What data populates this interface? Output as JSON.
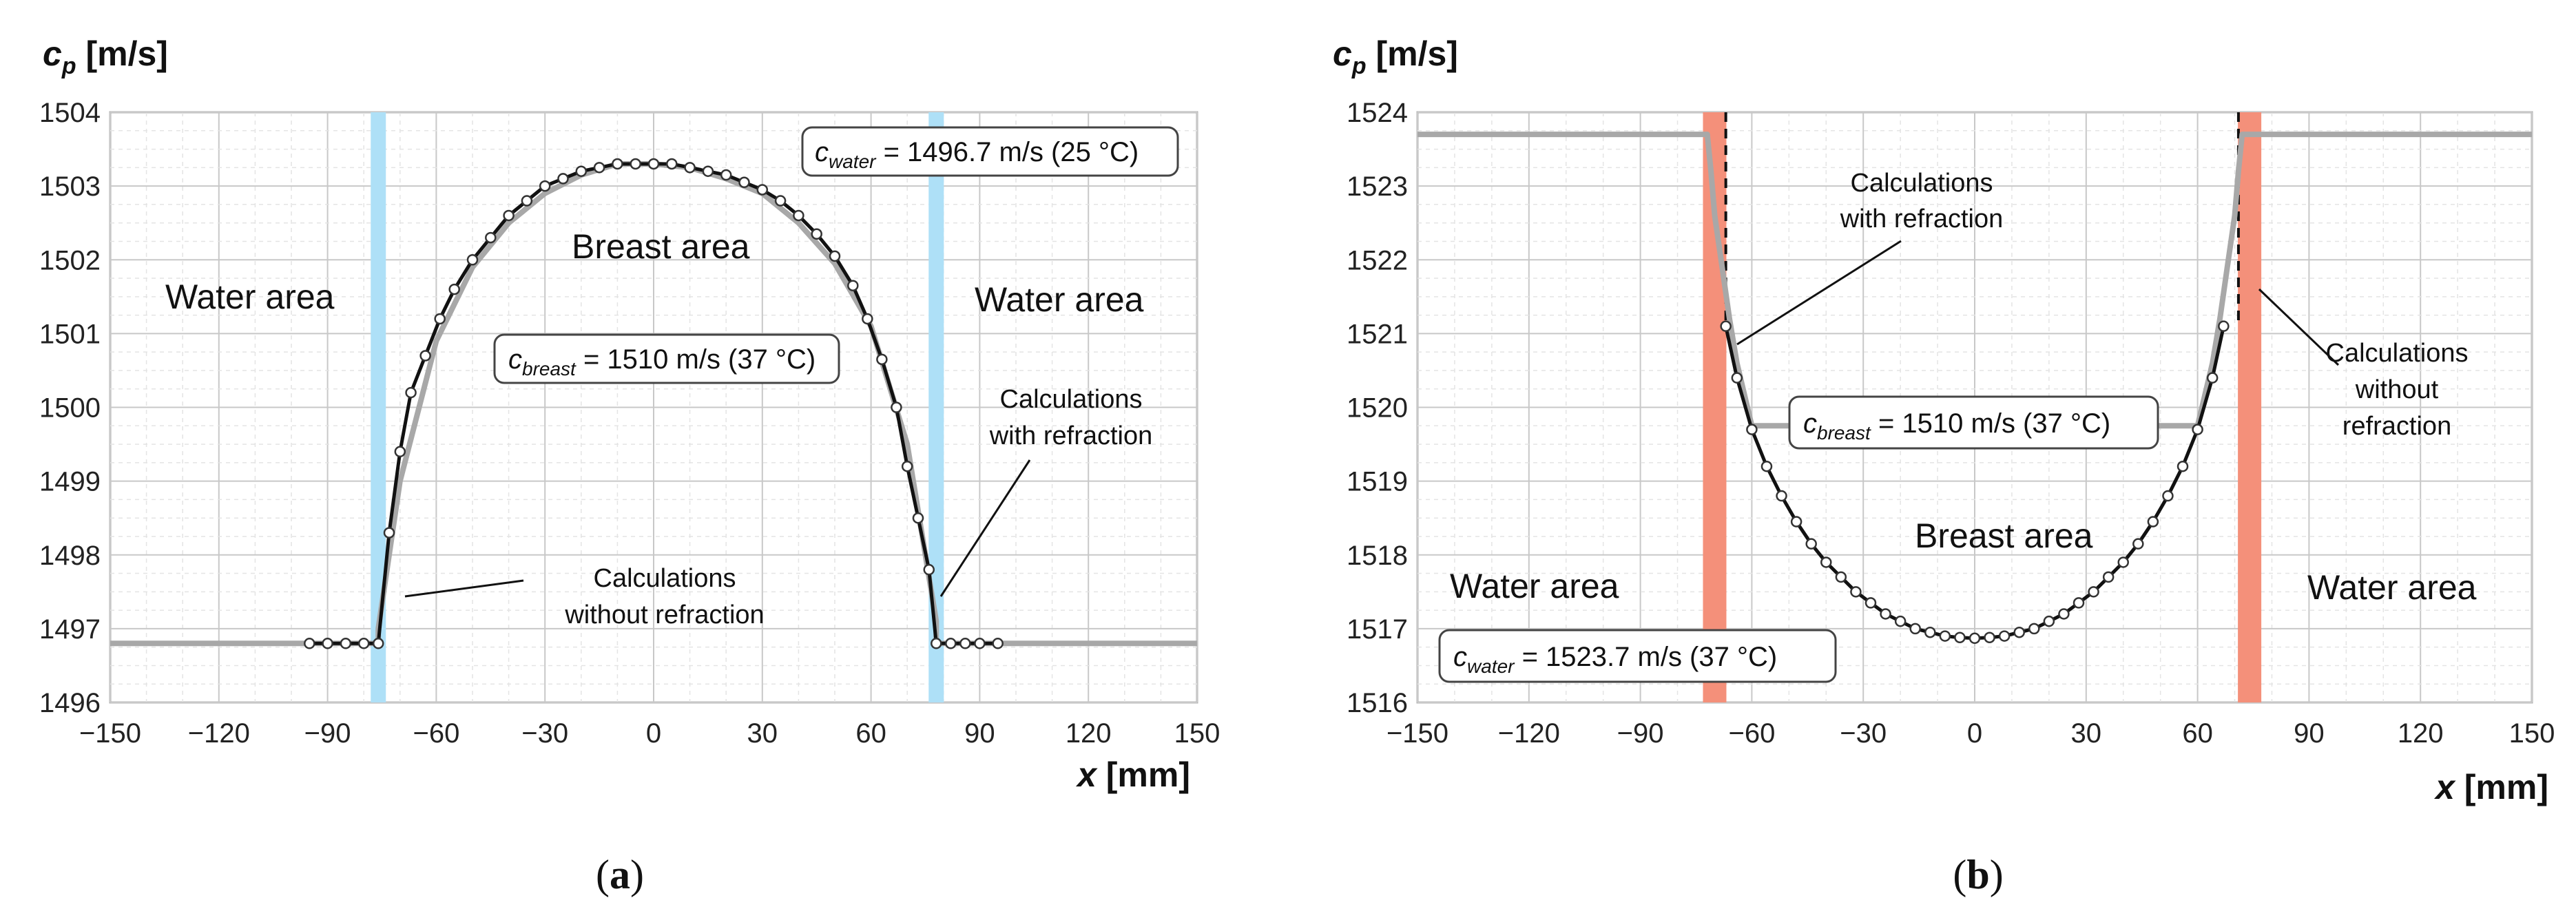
{
  "panels": [
    {
      "id": "a",
      "label_open": "(",
      "label_letter": "a",
      "label_close": ")",
      "ylabel_sym": "c",
      "ylabel_sub": "p",
      "ylabel_unit": " [m/s]",
      "xlabel_sym": "x",
      "xlabel_unit": " [mm]",
      "annotations": {
        "water_left": "Water area",
        "water_right": "Water area",
        "breast": "Breast area",
        "c_water_sym": "c",
        "c_water_sub": "water",
        "c_water_val": " = 1496.7 m/s (25 °C)",
        "c_breast_sym": "c",
        "c_breast_sub": "breast",
        "c_breast_val": " = 1510 m/s (37 °C)",
        "with_refraction_1": "Calculations",
        "with_refraction_2": "with refraction",
        "without_refraction_1": "Calculations",
        "without_refraction_2": "without refraction"
      }
    },
    {
      "id": "b",
      "label_open": "(",
      "label_letter": "b",
      "label_close": ")",
      "ylabel_sym": "c",
      "ylabel_sub": "p",
      "ylabel_unit": " [m/s]",
      "xlabel_sym": "x",
      "xlabel_unit": " [mm]",
      "annotations": {
        "water_left": "Water area",
        "water_right": "Water area",
        "breast": "Breast area",
        "c_water_sym": "c",
        "c_water_sub": "water",
        "c_water_val": " = 1523.7 m/s (37 °C)",
        "c_breast_sym": "c",
        "c_breast_sub": "breast",
        "c_breast_val": " = 1510 m/s (37 °C)",
        "with_refraction_1": "Calculations",
        "with_refraction_2": "with refraction",
        "without_refraction_1": "Calculations",
        "without_refraction_2": "without",
        "without_refraction_3": "refraction"
      }
    }
  ],
  "colors": {
    "panel_a_band": "#aee0f7",
    "panel_b_band": "#f4907a",
    "curve_with_refraction": "#111111",
    "curve_without_refraction": "#a8a8a8",
    "grid": "#d0d0d0"
  },
  "chart_data": [
    {
      "type": "line",
      "panel": "a",
      "xlim": [
        -150,
        150
      ],
      "ylim": [
        1496,
        1504
      ],
      "xticks": [
        -150,
        -120,
        -90,
        -60,
        -30,
        0,
        30,
        60,
        90,
        120,
        150
      ],
      "yticks": [
        1496,
        1497,
        1498,
        1499,
        1500,
        1501,
        1502,
        1503,
        1504
      ],
      "grid": true,
      "boundary_bands_x": [
        -76,
        78
      ],
      "series": [
        {
          "style": "line-with-markers",
          "x": [
            -95,
            -90,
            -85,
            -80,
            -76,
            -73,
            -70,
            -67,
            -63,
            -59,
            -55,
            -50,
            -45,
            -40,
            -35,
            -30,
            -25,
            -20,
            -15,
            -10,
            -5,
            0,
            5,
            10,
            15,
            20,
            25,
            30,
            35,
            40,
            45,
            50,
            55,
            59,
            63,
            67,
            70,
            73,
            76,
            78,
            82,
            86,
            90,
            95
          ],
          "y": [
            1496.8,
            1496.8,
            1496.8,
            1496.8,
            1496.8,
            1498.3,
            1499.4,
            1500.2,
            1500.7,
            1501.2,
            1501.6,
            1502.0,
            1502.3,
            1502.6,
            1502.8,
            1503.0,
            1503.1,
            1503.2,
            1503.25,
            1503.3,
            1503.3,
            1503.3,
            1503.3,
            1503.25,
            1503.2,
            1503.15,
            1503.05,
            1502.95,
            1502.8,
            1502.6,
            1502.35,
            1502.05,
            1501.65,
            1501.2,
            1500.65,
            1500.0,
            1499.2,
            1498.5,
            1497.8,
            1496.8,
            1496.8,
            1496.8,
            1496.8,
            1496.8
          ]
        },
        {
          "style": "line",
          "x": [
            -150,
            -76,
            -76,
            -70,
            -60,
            -50,
            -40,
            -30,
            -20,
            -10,
            0,
            10,
            20,
            30,
            40,
            50,
            60,
            70,
            78,
            78,
            150
          ],
          "y": [
            1496.8,
            1496.8,
            1497.0,
            1499.0,
            1500.9,
            1501.9,
            1502.5,
            1502.9,
            1503.15,
            1503.3,
            1503.3,
            1503.25,
            1503.1,
            1502.9,
            1502.5,
            1501.95,
            1501.1,
            1499.5,
            1497.1,
            1496.8,
            1496.8
          ]
        }
      ]
    },
    {
      "type": "line",
      "panel": "b",
      "xlim": [
        -150,
        150
      ],
      "ylim": [
        1516,
        1524
      ],
      "xticks": [
        -150,
        -120,
        -90,
        -60,
        -30,
        0,
        30,
        60,
        90,
        120,
        150
      ],
      "yticks": [
        1516,
        1517,
        1518,
        1519,
        1520,
        1521,
        1522,
        1523,
        1524
      ],
      "grid": true,
      "boundary_bands_x": [
        -70,
        74
      ],
      "boundary_lines_x": [
        -67,
        71
      ],
      "series": [
        {
          "style": "line-with-markers",
          "x": [
            -67,
            -64,
            -60,
            -56,
            -52,
            -48,
            -44,
            -40,
            -36,
            -32,
            -28,
            -24,
            -20,
            -16,
            -12,
            -8,
            -4,
            0,
            4,
            8,
            12,
            16,
            20,
            24,
            28,
            32,
            36,
            40,
            44,
            48,
            52,
            56,
            60,
            64,
            67
          ],
          "y": [
            1521.1,
            1520.4,
            1519.7,
            1519.2,
            1518.8,
            1518.45,
            1518.15,
            1517.9,
            1517.7,
            1517.5,
            1517.35,
            1517.2,
            1517.1,
            1517.0,
            1516.95,
            1516.9,
            1516.88,
            1516.87,
            1516.88,
            1516.9,
            1516.95,
            1517.0,
            1517.1,
            1517.2,
            1517.35,
            1517.5,
            1517.7,
            1517.9,
            1518.15,
            1518.45,
            1518.8,
            1519.2,
            1519.7,
            1520.4,
            1521.1
          ]
        },
        {
          "style": "line",
          "x": [
            -150,
            -72,
            -71,
            -70,
            -68,
            -66,
            -64,
            -60,
            60,
            64,
            66,
            68,
            70,
            71,
            72,
            150
          ],
          "y": [
            1523.7,
            1523.7,
            1523.2,
            1522.6,
            1521.9,
            1521.2,
            1520.6,
            1519.75,
            1519.75,
            1520.6,
            1521.2,
            1521.9,
            1522.6,
            1523.2,
            1523.7,
            1523.7
          ]
        }
      ]
    }
  ]
}
